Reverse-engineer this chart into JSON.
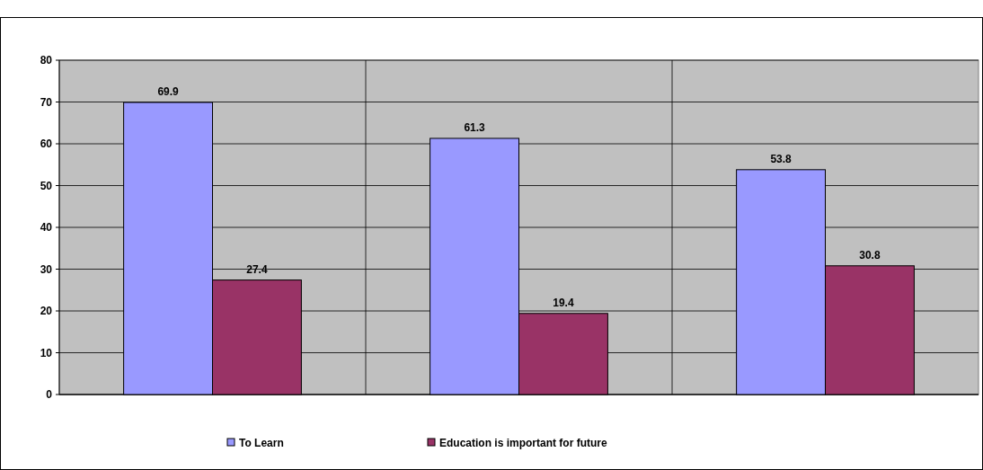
{
  "chart_data": {
    "type": "bar",
    "categories": [
      null,
      null,
      null
    ],
    "series": [
      {
        "name": "To Learn",
        "color": "#9999ff",
        "values": [
          69.9,
          61.3,
          53.8
        ]
      },
      {
        "name": "Education is important for future",
        "color": "#993366",
        "values": [
          27.4,
          19.4,
          30.8
        ]
      }
    ],
    "ylim": [
      0,
      80
    ],
    "yticks": [
      0,
      10,
      20,
      30,
      40,
      50,
      60,
      70,
      80
    ],
    "grid": true,
    "data_labels": true,
    "legend": "bottom"
  }
}
